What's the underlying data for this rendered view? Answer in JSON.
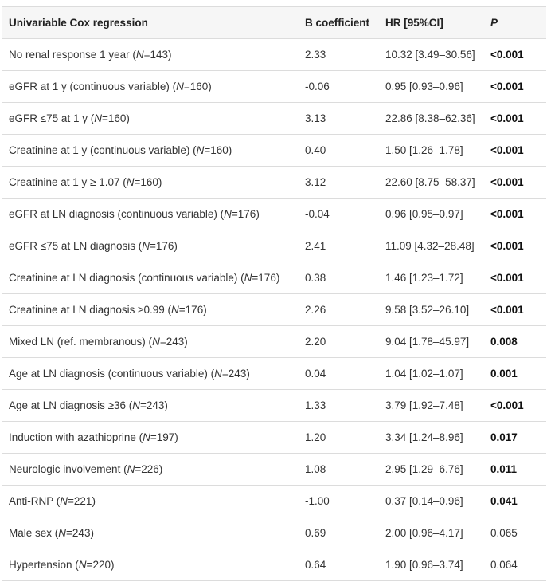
{
  "table": {
    "headers": {
      "variable": "Univariable Cox regression",
      "b": "B coefficient",
      "hr": "HR [95%CI]",
      "p": "P"
    },
    "rows": [
      {
        "label": "No renal response 1 year (",
        "n": "143",
        "b": "2.33",
        "hr": "10.32 [3.49–30.56]",
        "p": "<0.001",
        "sig": true
      },
      {
        "label": "eGFR at 1 y (continuous variable) (",
        "n": "160",
        "b": "-0.06",
        "hr": "0.95 [0.93–0.96]",
        "p": "<0.001",
        "sig": true
      },
      {
        "label": "eGFR ≤75 at 1 y (",
        "n": "160",
        "b": "3.13",
        "hr": "22.86 [8.38–62.36]",
        "p": "<0.001",
        "sig": true
      },
      {
        "label": "Creatinine at 1 y (continuous variable) (",
        "n": "160",
        "b": "0.40",
        "hr": "1.50 [1.26–1.78]",
        "p": "<0.001",
        "sig": true
      },
      {
        "label": "Creatinine at 1 y ≥ 1.07 (",
        "n": "160",
        "b": "3.12",
        "hr": "22.60 [8.75–58.37]",
        "p": "<0.001",
        "sig": true
      },
      {
        "label": "eGFR at LN diagnosis (continuous variable) (",
        "n": "176",
        "b": "-0.04",
        "hr": "0.96 [0.95–0.97]",
        "p": "<0.001",
        "sig": true
      },
      {
        "label": "eGFR ≤75 at LN diagnosis (",
        "n": "176",
        "b": "2.41",
        "hr": "11.09 [4.32–28.48]",
        "p": "<0.001",
        "sig": true
      },
      {
        "label": "Creatinine at LN diagnosis (continuous variable) (",
        "n": "176",
        "b": "0.38",
        "hr": "1.46 [1.23–1.72]",
        "p": "<0.001",
        "sig": true
      },
      {
        "label": "Creatinine at LN diagnosis ≥0.99 (",
        "n": "176",
        "b": "2.26",
        "hr": "9.58 [3.52–26.10]",
        "p": "<0.001",
        "sig": true
      },
      {
        "label": "Mixed LN (ref. membranous) (",
        "n": "243",
        "b": "2.20",
        "hr": "9.04 [1.78–45.97]",
        "p": "0.008",
        "sig": true
      },
      {
        "label": "Age at LN diagnosis (continuous variable) (",
        "n": "243",
        "b": "0.04",
        "hr": "1.04 [1.02–1.07]",
        "p": "0.001",
        "sig": true
      },
      {
        "label": "Age at LN diagnosis ≥36 (",
        "n": "243",
        "b": "1.33",
        "hr": "3.79 [1.92–7.48]",
        "p": "<0.001",
        "sig": true
      },
      {
        "label": "Induction with azathioprine (",
        "n": "197",
        "b": "1.20",
        "hr": "3.34 [1.24–8.96]",
        "p": "0.017",
        "sig": true
      },
      {
        "label": "Neurologic involvement (",
        "n": "226",
        "b": "1.08",
        "hr": "2.95 [1.29–6.76]",
        "p": "0.011",
        "sig": true
      },
      {
        "label": "Anti-RNP (",
        "n": "221",
        "b": "-1.00",
        "hr": "0.37 [0.14–0.96]",
        "p": "0.041",
        "sig": true
      },
      {
        "label": "Male sex (",
        "n": "243",
        "b": "0.69",
        "hr": "2.00 [0.96–4.17]",
        "p": "0.065",
        "sig": false
      },
      {
        "label": "Hypertension (",
        "n": "220",
        "b": "0.64",
        "hr": "1.90 [0.96–3.74]",
        "p": "0.064",
        "sig": false
      }
    ],
    "n_symbol": "N",
    "n_equals": "=",
    "n_close": ")"
  }
}
